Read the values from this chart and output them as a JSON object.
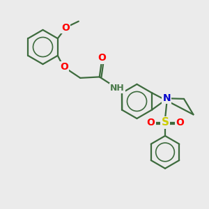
{
  "background_color": "#ebebeb",
  "bond_color": "#3d6b3d",
  "bond_width": 1.6,
  "atom_colors": {
    "O": "#ff0000",
    "N": "#0000cc",
    "S": "#cccc00",
    "NH": "#4a7a4a",
    "C": "#3d6b3d"
  },
  "font_size": 9
}
